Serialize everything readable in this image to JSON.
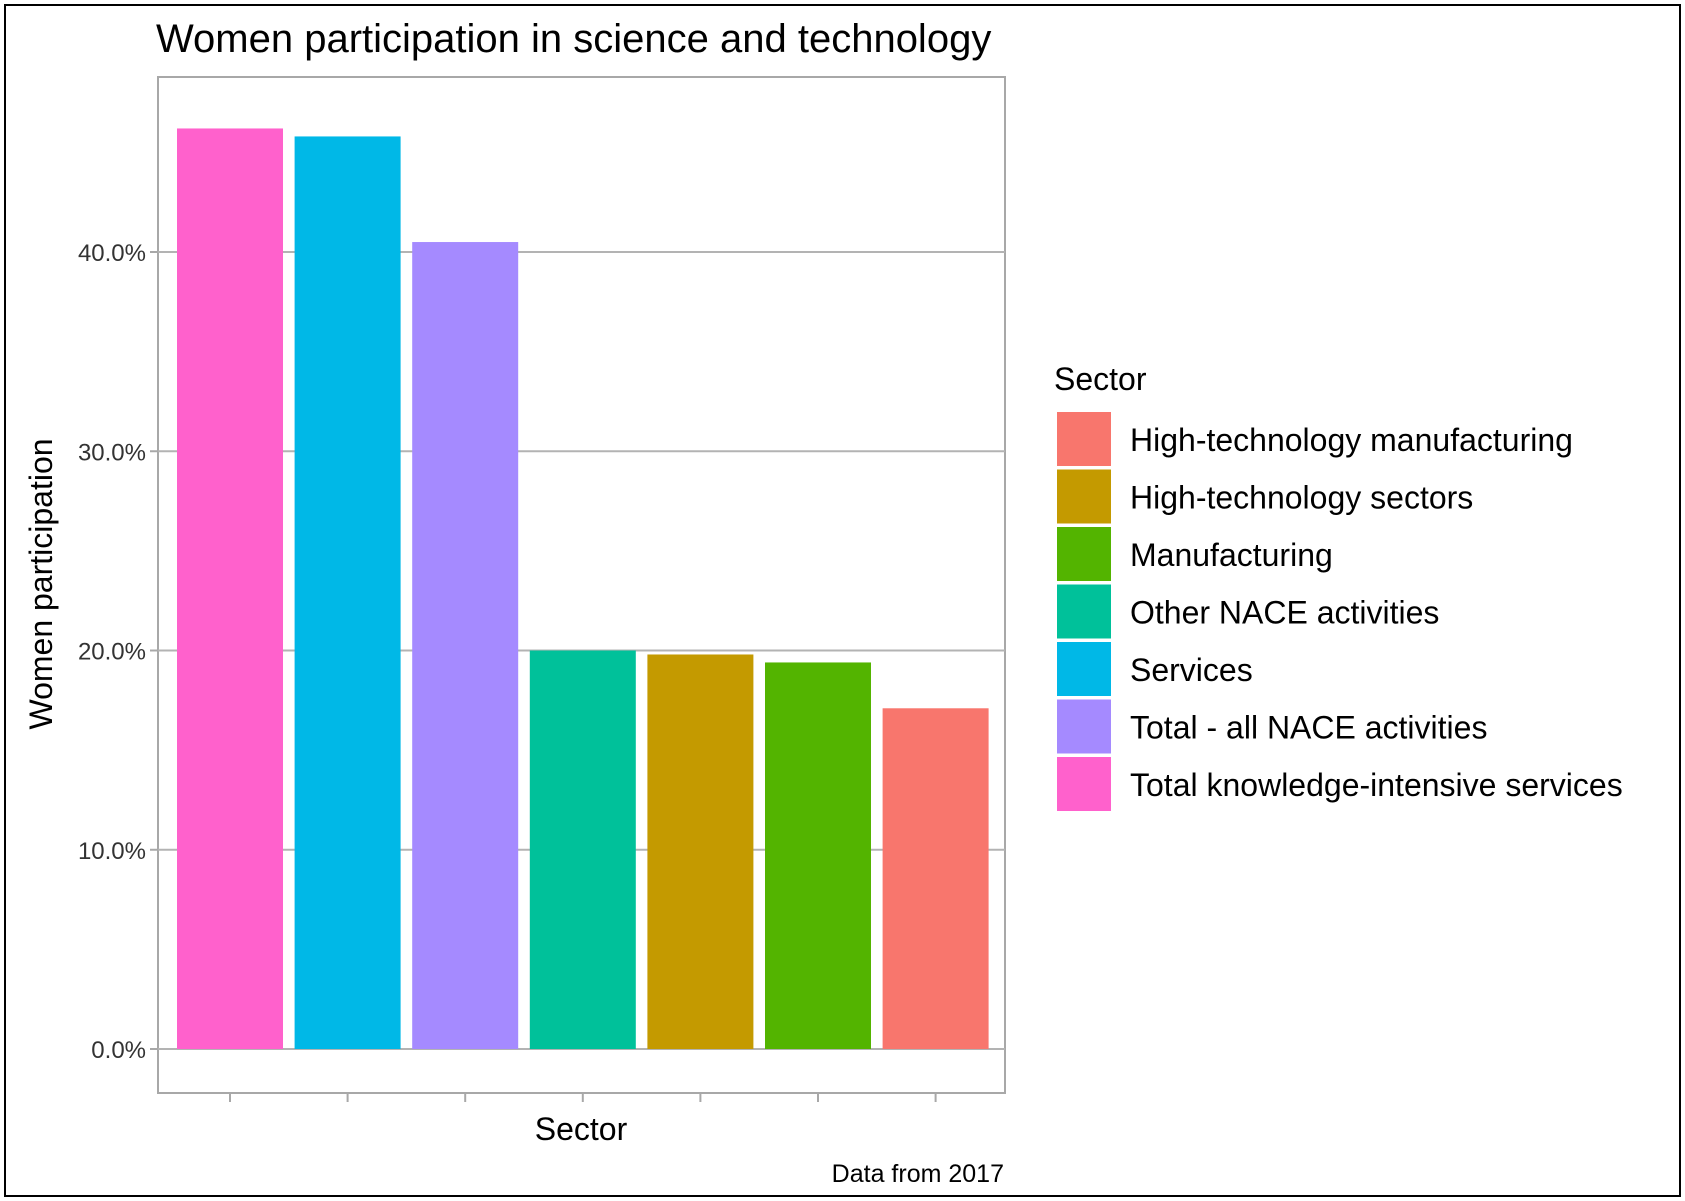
{
  "chart_data": {
    "type": "bar",
    "title": "Women participation in science and technology",
    "xlabel": "Sector",
    "ylabel": "Women participation",
    "caption": "Data from 2017",
    "ylim": [
      0,
      0.5
    ],
    "yticks": [
      0,
      0.1,
      0.2,
      0.3,
      0.4
    ],
    "ytick_labels": [
      "0.0%",
      "10.0%",
      "20.0%",
      "30.0%",
      "40.0%"
    ],
    "grid": true,
    "legend_title": "Sector",
    "legend_position": "right",
    "categories": [
      "Total knowledge-intensive services",
      "Services",
      "Total - all NACE activities",
      "Other NACE activities",
      "High-technology sectors",
      "Manufacturing",
      "High-technology manufacturing"
    ],
    "values": [
      0.462,
      0.458,
      0.405,
      0.2,
      0.198,
      0.194,
      0.171
    ],
    "colors": [
      "#FF61CC",
      "#00B8E7",
      "#A58AFF",
      "#00C19A",
      "#C49A00",
      "#53B400",
      "#F8766D"
    ],
    "legend": [
      {
        "label": "High-technology manufacturing",
        "color": "#F8766D"
      },
      {
        "label": "High-technology sectors",
        "color": "#C49A00"
      },
      {
        "label": "Manufacturing",
        "color": "#53B400"
      },
      {
        "label": "Other NACE activities",
        "color": "#00C19A"
      },
      {
        "label": "Services",
        "color": "#00B8E7"
      },
      {
        "label": "Total - all NACE activities",
        "color": "#A58AFF"
      },
      {
        "label": "Total knowledge-intensive services",
        "color": "#FF61CC"
      }
    ]
  }
}
